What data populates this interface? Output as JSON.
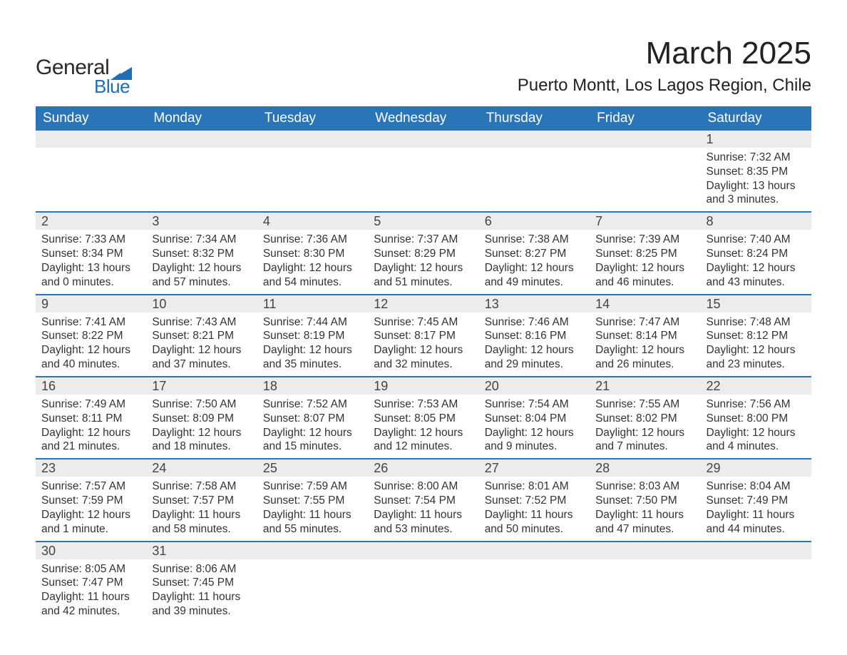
{
  "logo": {
    "word1": "General",
    "word2": "Blue",
    "word1_color": "#2a2a2a",
    "word2_color": "#1f6db4",
    "triangle_color": "#1f6db4"
  },
  "header": {
    "title": "March 2025",
    "location": "Puerto Montt, Los Lagos Region, Chile"
  },
  "calendar": {
    "weekdays": [
      "Sunday",
      "Monday",
      "Tuesday",
      "Wednesday",
      "Thursday",
      "Friday",
      "Saturday"
    ],
    "header_bg": "#2a74b8",
    "header_fg": "#ffffff",
    "daynum_bg": "#ececec",
    "border_color": "#2a74b8",
    "weeks": [
      [
        null,
        null,
        null,
        null,
        null,
        null,
        {
          "n": "1",
          "sunrise": "Sunrise: 7:32 AM",
          "sunset": "Sunset: 8:35 PM",
          "day1": "Daylight: 13 hours",
          "day2": "and 3 minutes."
        }
      ],
      [
        {
          "n": "2",
          "sunrise": "Sunrise: 7:33 AM",
          "sunset": "Sunset: 8:34 PM",
          "day1": "Daylight: 13 hours",
          "day2": "and 0 minutes."
        },
        {
          "n": "3",
          "sunrise": "Sunrise: 7:34 AM",
          "sunset": "Sunset: 8:32 PM",
          "day1": "Daylight: 12 hours",
          "day2": "and 57 minutes."
        },
        {
          "n": "4",
          "sunrise": "Sunrise: 7:36 AM",
          "sunset": "Sunset: 8:30 PM",
          "day1": "Daylight: 12 hours",
          "day2": "and 54 minutes."
        },
        {
          "n": "5",
          "sunrise": "Sunrise: 7:37 AM",
          "sunset": "Sunset: 8:29 PM",
          "day1": "Daylight: 12 hours",
          "day2": "and 51 minutes."
        },
        {
          "n": "6",
          "sunrise": "Sunrise: 7:38 AM",
          "sunset": "Sunset: 8:27 PM",
          "day1": "Daylight: 12 hours",
          "day2": "and 49 minutes."
        },
        {
          "n": "7",
          "sunrise": "Sunrise: 7:39 AM",
          "sunset": "Sunset: 8:25 PM",
          "day1": "Daylight: 12 hours",
          "day2": "and 46 minutes."
        },
        {
          "n": "8",
          "sunrise": "Sunrise: 7:40 AM",
          "sunset": "Sunset: 8:24 PM",
          "day1": "Daylight: 12 hours",
          "day2": "and 43 minutes."
        }
      ],
      [
        {
          "n": "9",
          "sunrise": "Sunrise: 7:41 AM",
          "sunset": "Sunset: 8:22 PM",
          "day1": "Daylight: 12 hours",
          "day2": "and 40 minutes."
        },
        {
          "n": "10",
          "sunrise": "Sunrise: 7:43 AM",
          "sunset": "Sunset: 8:21 PM",
          "day1": "Daylight: 12 hours",
          "day2": "and 37 minutes."
        },
        {
          "n": "11",
          "sunrise": "Sunrise: 7:44 AM",
          "sunset": "Sunset: 8:19 PM",
          "day1": "Daylight: 12 hours",
          "day2": "and 35 minutes."
        },
        {
          "n": "12",
          "sunrise": "Sunrise: 7:45 AM",
          "sunset": "Sunset: 8:17 PM",
          "day1": "Daylight: 12 hours",
          "day2": "and 32 minutes."
        },
        {
          "n": "13",
          "sunrise": "Sunrise: 7:46 AM",
          "sunset": "Sunset: 8:16 PM",
          "day1": "Daylight: 12 hours",
          "day2": "and 29 minutes."
        },
        {
          "n": "14",
          "sunrise": "Sunrise: 7:47 AM",
          "sunset": "Sunset: 8:14 PM",
          "day1": "Daylight: 12 hours",
          "day2": "and 26 minutes."
        },
        {
          "n": "15",
          "sunrise": "Sunrise: 7:48 AM",
          "sunset": "Sunset: 8:12 PM",
          "day1": "Daylight: 12 hours",
          "day2": "and 23 minutes."
        }
      ],
      [
        {
          "n": "16",
          "sunrise": "Sunrise: 7:49 AM",
          "sunset": "Sunset: 8:11 PM",
          "day1": "Daylight: 12 hours",
          "day2": "and 21 minutes."
        },
        {
          "n": "17",
          "sunrise": "Sunrise: 7:50 AM",
          "sunset": "Sunset: 8:09 PM",
          "day1": "Daylight: 12 hours",
          "day2": "and 18 minutes."
        },
        {
          "n": "18",
          "sunrise": "Sunrise: 7:52 AM",
          "sunset": "Sunset: 8:07 PM",
          "day1": "Daylight: 12 hours",
          "day2": "and 15 minutes."
        },
        {
          "n": "19",
          "sunrise": "Sunrise: 7:53 AM",
          "sunset": "Sunset: 8:05 PM",
          "day1": "Daylight: 12 hours",
          "day2": "and 12 minutes."
        },
        {
          "n": "20",
          "sunrise": "Sunrise: 7:54 AM",
          "sunset": "Sunset: 8:04 PM",
          "day1": "Daylight: 12 hours",
          "day2": "and 9 minutes."
        },
        {
          "n": "21",
          "sunrise": "Sunrise: 7:55 AM",
          "sunset": "Sunset: 8:02 PM",
          "day1": "Daylight: 12 hours",
          "day2": "and 7 minutes."
        },
        {
          "n": "22",
          "sunrise": "Sunrise: 7:56 AM",
          "sunset": "Sunset: 8:00 PM",
          "day1": "Daylight: 12 hours",
          "day2": "and 4 minutes."
        }
      ],
      [
        {
          "n": "23",
          "sunrise": "Sunrise: 7:57 AM",
          "sunset": "Sunset: 7:59 PM",
          "day1": "Daylight: 12 hours",
          "day2": "and 1 minute."
        },
        {
          "n": "24",
          "sunrise": "Sunrise: 7:58 AM",
          "sunset": "Sunset: 7:57 PM",
          "day1": "Daylight: 11 hours",
          "day2": "and 58 minutes."
        },
        {
          "n": "25",
          "sunrise": "Sunrise: 7:59 AM",
          "sunset": "Sunset: 7:55 PM",
          "day1": "Daylight: 11 hours",
          "day2": "and 55 minutes."
        },
        {
          "n": "26",
          "sunrise": "Sunrise: 8:00 AM",
          "sunset": "Sunset: 7:54 PM",
          "day1": "Daylight: 11 hours",
          "day2": "and 53 minutes."
        },
        {
          "n": "27",
          "sunrise": "Sunrise: 8:01 AM",
          "sunset": "Sunset: 7:52 PM",
          "day1": "Daylight: 11 hours",
          "day2": "and 50 minutes."
        },
        {
          "n": "28",
          "sunrise": "Sunrise: 8:03 AM",
          "sunset": "Sunset: 7:50 PM",
          "day1": "Daylight: 11 hours",
          "day2": "and 47 minutes."
        },
        {
          "n": "29",
          "sunrise": "Sunrise: 8:04 AM",
          "sunset": "Sunset: 7:49 PM",
          "day1": "Daylight: 11 hours",
          "day2": "and 44 minutes."
        }
      ],
      [
        {
          "n": "30",
          "sunrise": "Sunrise: 8:05 AM",
          "sunset": "Sunset: 7:47 PM",
          "day1": "Daylight: 11 hours",
          "day2": "and 42 minutes."
        },
        {
          "n": "31",
          "sunrise": "Sunrise: 8:06 AM",
          "sunset": "Sunset: 7:45 PM",
          "day1": "Daylight: 11 hours",
          "day2": "and 39 minutes."
        },
        null,
        null,
        null,
        null,
        null
      ]
    ]
  }
}
